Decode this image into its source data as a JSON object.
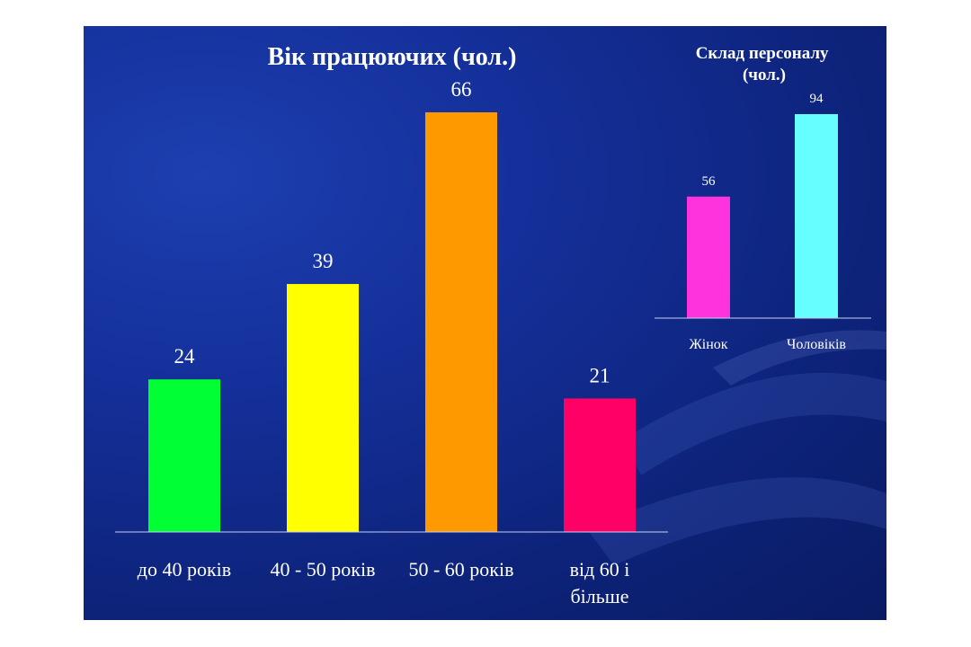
{
  "colors": {
    "background": "#142f99",
    "text": "#ffffff",
    "axis": "#c8d0ee"
  },
  "chart_data": [
    {
      "type": "bar",
      "title": "Вік працюючих (чол.)",
      "categories": [
        "до 40 років",
        "40 - 50 років",
        "50 - 60 років",
        "від 60 і більше"
      ],
      "values": [
        24,
        39,
        66,
        21
      ],
      "data_labels": [
        "24",
        "39",
        "66",
        "21"
      ],
      "bar_colors": [
        "#00ff33",
        "#ffff00",
        "#ff9900",
        "#ff0066"
      ],
      "ylim": [
        0,
        66
      ],
      "grid": false,
      "legend": "none"
    },
    {
      "type": "bar",
      "title": "Склад персоналу (чол.)",
      "categories": [
        "Жінок",
        "Чоловіків"
      ],
      "values": [
        56,
        94
      ],
      "data_labels": [
        "56",
        "94"
      ],
      "bar_colors": [
        "#ff33dd",
        "#66ffff"
      ],
      "ylim": [
        0,
        94
      ],
      "grid": false,
      "legend": "none"
    }
  ]
}
